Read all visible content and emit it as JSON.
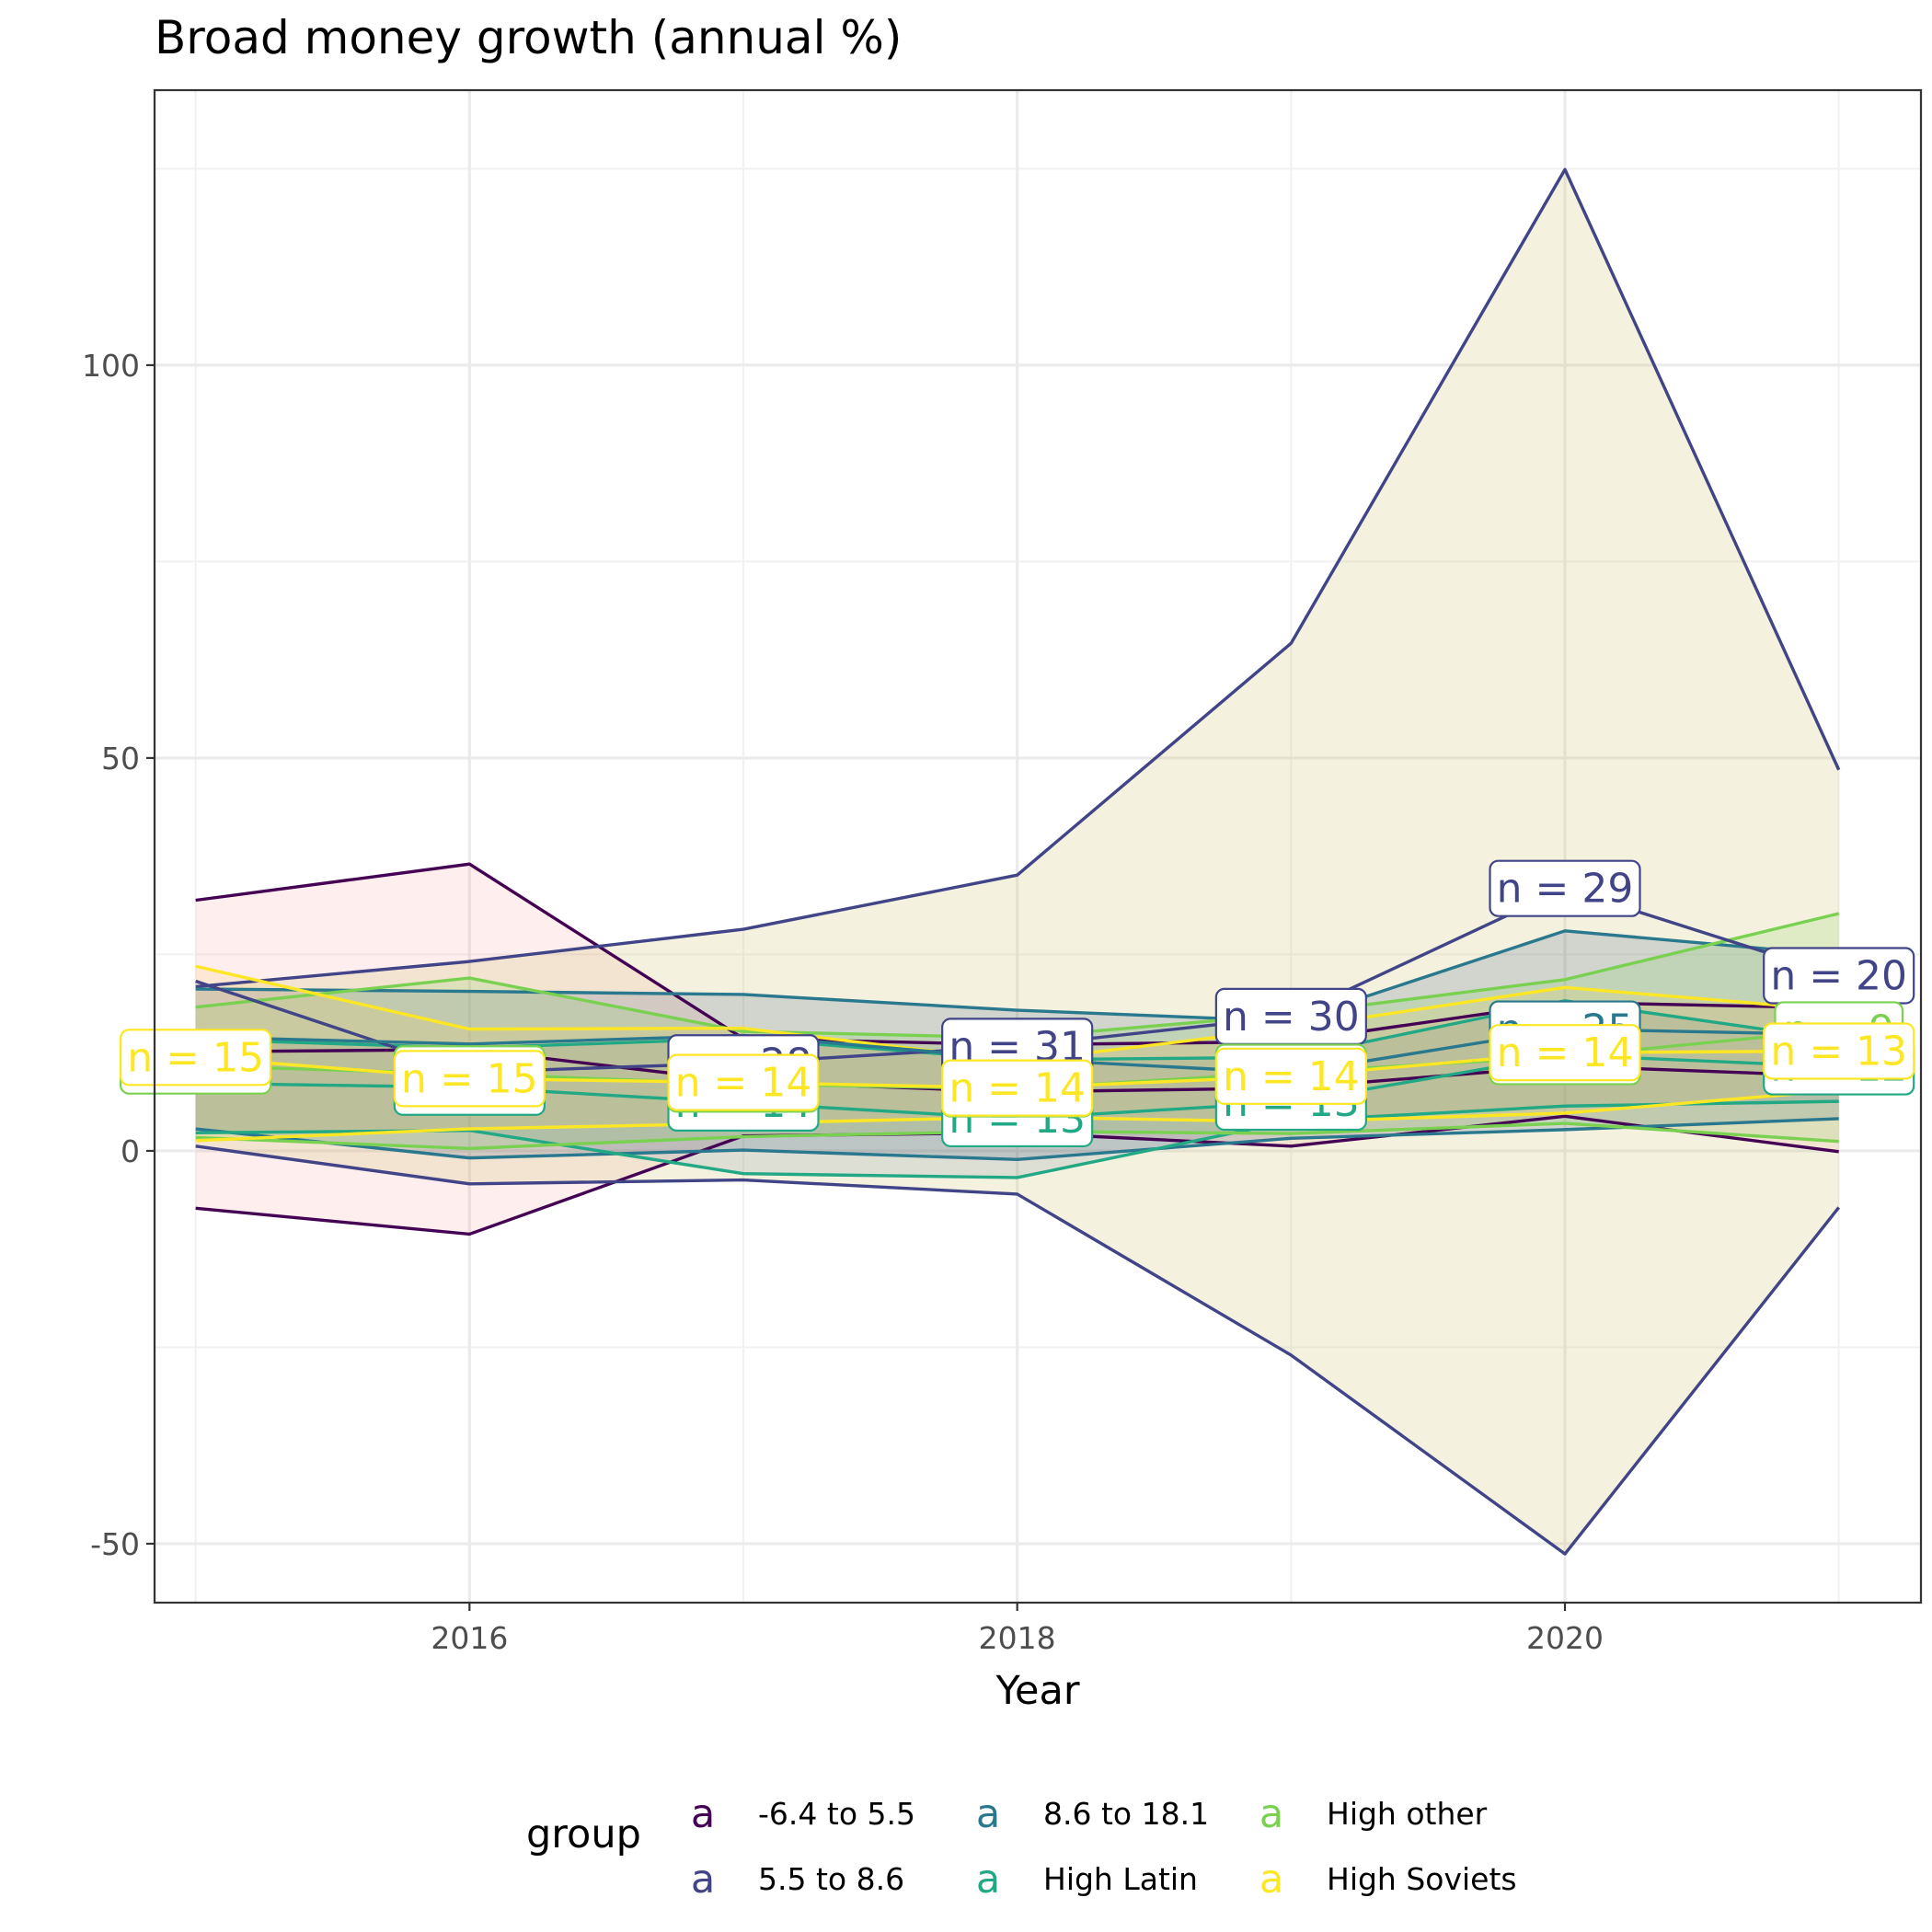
{
  "chart_data": {
    "type": "line",
    "title": "Broad money growth (annual %)",
    "xlabel": "Year",
    "ylabel": "",
    "xlim": [
      2014.85,
      2021.3
    ],
    "ylim": [
      -57.5,
      135
    ],
    "x_ticks": [
      2016,
      2018,
      2020
    ],
    "y_ticks": [
      -50,
      0,
      50,
      100
    ],
    "grid": true,
    "legend": {
      "title": "group",
      "position": "bottom",
      "key_glyph": "a"
    },
    "colors": {
      "-6.4 to 5.5": "#440154",
      "5.5 to 8.6": "#414487",
      "8.6 to 18.1": "#2A788E",
      "High Latin": "#22A884",
      "High other": "#7AD151",
      "High Soviets": "#FDE725"
    },
    "ribbon_fills": {
      "-6.4 to 5.5": "rgba(248,118,109,0.12)",
      "5.5 to 8.6": "rgba(205,190,110,0.22)",
      "8.6 to 18.1": "rgba(30,70,120,0.16)",
      "High Latin": "rgba(30,70,120,0.10)",
      "High other": "rgba(122,209,81,0.18)",
      "High Soviets": "rgba(253,200,80,0.15)"
    },
    "x": [
      2015,
      2016,
      2017,
      2018,
      2019,
      2020,
      2021
    ],
    "series": [
      {
        "name": "-6.4 to 5.5",
        "upper": [
          31.9,
          36.5,
          14.3,
          13.5,
          13.9,
          18.9,
          18.2
        ],
        "mean": [
          12.6,
          12.9,
          8.8,
          7.5,
          8.0,
          10.8,
          9.5
        ],
        "lower": [
          -7.3,
          -10.6,
          1.9,
          2.3,
          0.6,
          4.4,
          -0.1
        ],
        "n_labels": [
          "",
          "",
          "",
          "",
          "",
          "",
          ""
        ]
      },
      {
        "name": "5.5 to 8.6",
        "upper": [
          20.9,
          24.1,
          28.2,
          35.1,
          64.6,
          124.9,
          48.5
        ],
        "mean": [
          21.6,
          10.0,
          11.2,
          13.3,
          17.1,
          33.4,
          22.3
        ],
        "lower": [
          0.6,
          -4.2,
          -3.7,
          -5.5,
          -26.0,
          -51.3,
          -7.2
        ],
        "n_labels": [
          "",
          "",
          "n = 28",
          "n = 31",
          "n = 30",
          "n = 29",
          "n = 20"
        ]
      },
      {
        "name": "8.6 to 18.1",
        "upper": [
          20.6,
          20.3,
          19.9,
          17.9,
          16.5,
          28.0,
          24.9
        ],
        "mean": [
          14.5,
          13.6,
          14.7,
          11.7,
          9.9,
          15.5,
          14.8
        ],
        "lower": [
          2.8,
          -0.9,
          0.1,
          -1.1,
          1.6,
          2.7,
          4.1
        ],
        "n_labels": [
          "",
          "",
          "",
          "",
          "",
          "n = 25",
          ""
        ]
      },
      {
        "name": "High Latin",
        "upper": [
          14.2,
          13.1,
          14.3,
          11.6,
          11.9,
          19.1,
          14.1
        ],
        "mean": [
          8.6,
          8.1,
          6.1,
          4.1,
          6.2,
          12.2,
          10.7
        ],
        "lower": [
          2.3,
          2.6,
          -2.9,
          -3.4,
          3.8,
          5.7,
          6.3
        ],
        "n_labels": [
          "",
          "n = 13",
          "n = 14",
          "n = 13",
          "n = 13",
          "n = 12",
          "n = 12"
        ]
      },
      {
        "name": "High other",
        "upper": [
          18.3,
          22.0,
          15.2,
          14.4,
          17.4,
          21.8,
          30.2
        ],
        "mean": [
          10.8,
          9.8,
          8.5,
          7.9,
          10.0,
          12.0,
          15.4
        ],
        "lower": [
          1.7,
          0.3,
          1.8,
          2.5,
          2.2,
          3.5,
          1.2
        ],
        "n_labels": [
          "n = 13",
          "n = 13",
          "n = 12",
          "n = 10",
          "n = 10",
          "n = 10",
          "n = 9"
        ]
      },
      {
        "name": "High Soviets",
        "upper": [
          23.5,
          15.5,
          15.6,
          11.4,
          15.6,
          20.8,
          17.9
        ],
        "mean": [
          11.9,
          9.2,
          8.7,
          8.0,
          9.5,
          12.5,
          12.7
        ],
        "lower": [
          1.3,
          2.8,
          3.5,
          4.3,
          3.7,
          4.8,
          7.7
        ],
        "n_labels": [
          "n = 15",
          "n = 15",
          "n = 14",
          "n = 14",
          "n = 14",
          "n = 14",
          "n = 13"
        ]
      }
    ]
  }
}
